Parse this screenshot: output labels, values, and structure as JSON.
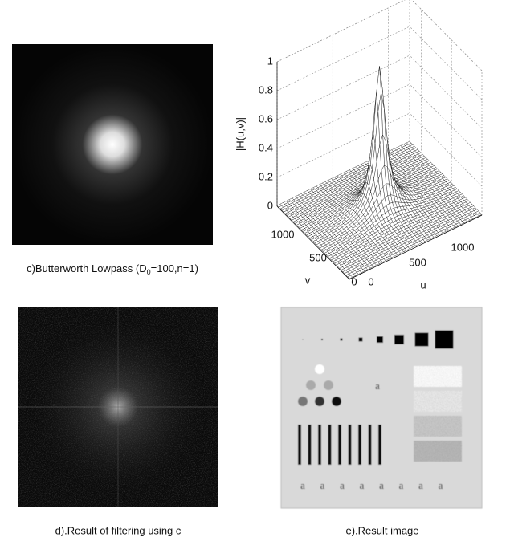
{
  "panels": {
    "c": {
      "caption": {
        "prefix": "c)Butterworth Lowpass (D",
        "subscript": "0",
        "suffix": "=100,n=1)"
      }
    },
    "plot": {
      "z_label": "|H(u,v)|",
      "v_label": "v",
      "u_label": "u",
      "z_ticks": [
        0,
        0.2,
        0.4,
        0.6,
        0.8,
        1
      ],
      "v_ticks": [
        0,
        500,
        1000
      ],
      "u_ticks": [
        0,
        500,
        1000
      ]
    },
    "d": {
      "caption": "d).Result of filtering using c"
    },
    "e": {
      "caption": "e).Result image",
      "image_letter": "a"
    }
  }
}
